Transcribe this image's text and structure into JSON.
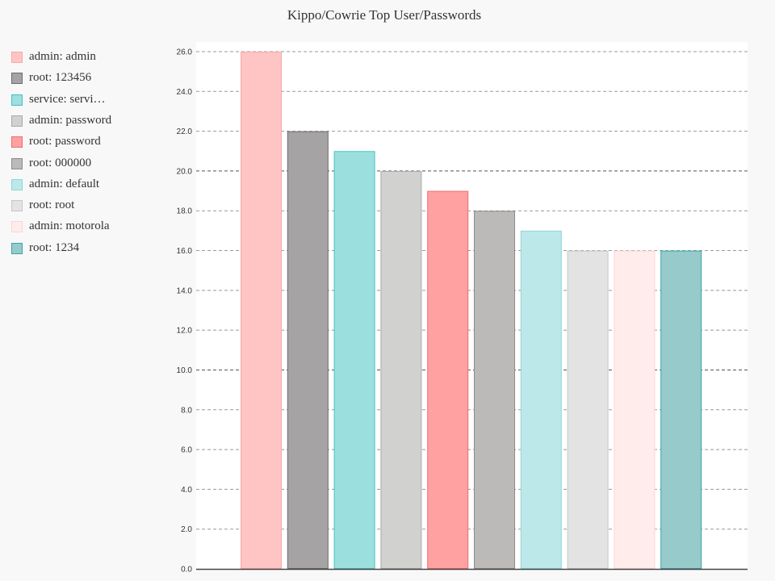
{
  "chart_data": {
    "type": "bar",
    "title": "Kippo/Cowrie Top User/Passwords",
    "xlabel": "",
    "ylabel": "",
    "ylim": [
      0,
      26
    ],
    "y_ticks": [
      "0.0",
      "2.0",
      "4.0",
      "6.0",
      "8.0",
      "10.0",
      "12.0",
      "14.0",
      "16.0",
      "18.0",
      "20.0",
      "22.0",
      "24.0",
      "26.0"
    ],
    "grid": true,
    "legend_position": "left",
    "series": [
      {
        "name": "admin: admin",
        "value": 26,
        "fill": "#ffc4c4",
        "stroke": "#f6aaaa"
      },
      {
        "name": "root: 123456",
        "value": 22,
        "fill": "#a5a3a3",
        "stroke": "#6e6c6c"
      },
      {
        "name": "service: servi…",
        "value": 21,
        "fill": "#9be0df",
        "stroke": "#48c1bf"
      },
      {
        "name": "admin: password",
        "value": 20,
        "fill": "#d1d2d0",
        "stroke": "#a9aaa8"
      },
      {
        "name": "root: password",
        "value": 19,
        "fill": "#ffa1a1",
        "stroke": "#ef6b6b"
      },
      {
        "name": "root: 000000",
        "value": 18,
        "fill": "#bcbab9",
        "stroke": "#8e8c8b"
      },
      {
        "name": "admin: default",
        "value": 17,
        "fill": "#bde8e9",
        "stroke": "#8dd6d8"
      },
      {
        "name": "root: root",
        "value": 16,
        "fill": "#e2e3e2",
        "stroke": "#c6c7c6"
      },
      {
        "name": "admin: motorola",
        "value": 16,
        "fill": "#ffeceb",
        "stroke": "#f9d7d6"
      },
      {
        "name": "root: 1234",
        "value": 16,
        "fill": "#97cacb",
        "stroke": "#3fa3a5"
      }
    ]
  }
}
